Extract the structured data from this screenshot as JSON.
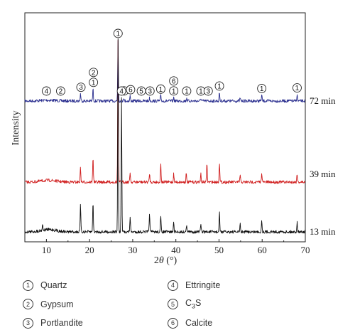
{
  "chart_data": {
    "type": "line",
    "xlabel_prefix": "2",
    "xlabel_symbol": "θ",
    "xlabel_suffix": " (°)",
    "ylabel": "Intensity",
    "xlim": [
      5,
      70
    ],
    "x_ticks": [
      "10",
      "20",
      "30",
      "40",
      "50",
      "60",
      "70"
    ],
    "grid": false,
    "series": [
      {
        "name": "72 min",
        "color": "#2b2f8f",
        "peaks": [
          [
            17.9,
            0.12
          ],
          [
            20.8,
            0.2
          ],
          [
            26.6,
            1.0
          ],
          [
            27.9,
            0.06
          ],
          [
            29.4,
            0.08
          ],
          [
            33.9,
            0.05
          ],
          [
            36.5,
            0.09
          ],
          [
            39.5,
            0.06
          ],
          [
            42.5,
            0.05
          ],
          [
            45.8,
            0.05
          ],
          [
            50.1,
            0.14
          ],
          [
            54.9,
            0.05
          ],
          [
            59.9,
            0.1
          ],
          [
            68.1,
            0.11
          ]
        ],
        "annotations": [
          {
            "x": 10.0,
            "labels": [
              "4"
            ]
          },
          {
            "x": 13.3,
            "labels": [
              "2"
            ]
          },
          {
            "x": 18.0,
            "labels": [
              "3"
            ]
          },
          {
            "x": 20.9,
            "labels": [
              "2",
              "1"
            ]
          },
          {
            "x": 26.6,
            "labels": [
              "1"
            ]
          },
          {
            "x": 28.0,
            "labels": [
              "4"
            ]
          },
          {
            "x": 29.5,
            "labels": [
              "6"
            ]
          },
          {
            "x": 32.0,
            "labels": [
              "5"
            ]
          },
          {
            "x": 34.0,
            "labels": [
              "3"
            ]
          },
          {
            "x": 36.5,
            "labels": [
              "1"
            ]
          },
          {
            "x": 39.5,
            "labels": [
              "6",
              "1"
            ]
          },
          {
            "x": 42.5,
            "labels": [
              "1"
            ]
          },
          {
            "x": 45.8,
            "labels": [
              "1"
            ]
          },
          {
            "x": 47.5,
            "labels": [
              "3"
            ]
          },
          {
            "x": 50.1,
            "labels": [
              "1"
            ]
          },
          {
            "x": 59.9,
            "labels": [
              "1"
            ]
          },
          {
            "x": 68.1,
            "labels": [
              "1"
            ]
          }
        ]
      },
      {
        "name": "39 min",
        "color": "#d01e1e",
        "peaks": [
          [
            17.9,
            0.1
          ],
          [
            20.8,
            0.18
          ],
          [
            26.6,
            1.0
          ],
          [
            29.4,
            0.07
          ],
          [
            33.9,
            0.06
          ],
          [
            36.5,
            0.13
          ],
          [
            39.5,
            0.06
          ],
          [
            42.4,
            0.06
          ],
          [
            45.8,
            0.06
          ],
          [
            47.2,
            0.14
          ],
          [
            50.1,
            0.14
          ],
          [
            54.9,
            0.05
          ],
          [
            59.9,
            0.07
          ],
          [
            68.1,
            0.06
          ]
        ],
        "annotations": []
      },
      {
        "name": "13 min",
        "color": "#111111",
        "peaks": [
          [
            9.1,
            0.03
          ],
          [
            17.9,
            0.14
          ],
          [
            20.8,
            0.16
          ],
          [
            26.6,
            1.0
          ],
          [
            27.4,
            0.7
          ],
          [
            29.4,
            0.08
          ],
          [
            33.9,
            0.1
          ],
          [
            36.5,
            0.08
          ],
          [
            39.5,
            0.05
          ],
          [
            42.5,
            0.04
          ],
          [
            45.8,
            0.04
          ],
          [
            50.1,
            0.1
          ],
          [
            54.9,
            0.04
          ],
          [
            59.9,
            0.06
          ],
          [
            68.1,
            0.05
          ]
        ],
        "annotations": [
          {
            "x": 27.4,
            "labels": [
              "4"
            ]
          }
        ]
      }
    ]
  },
  "legend": [
    {
      "num": "1",
      "text": "Quartz"
    },
    {
      "num": "4",
      "text": "Ettringite"
    },
    {
      "num": "2",
      "text": "Gypsum"
    },
    {
      "num": "5",
      "text": "C3S",
      "formula": true
    },
    {
      "num": "3",
      "text": "Portlandite"
    },
    {
      "num": "6",
      "text": "Calcite"
    }
  ]
}
